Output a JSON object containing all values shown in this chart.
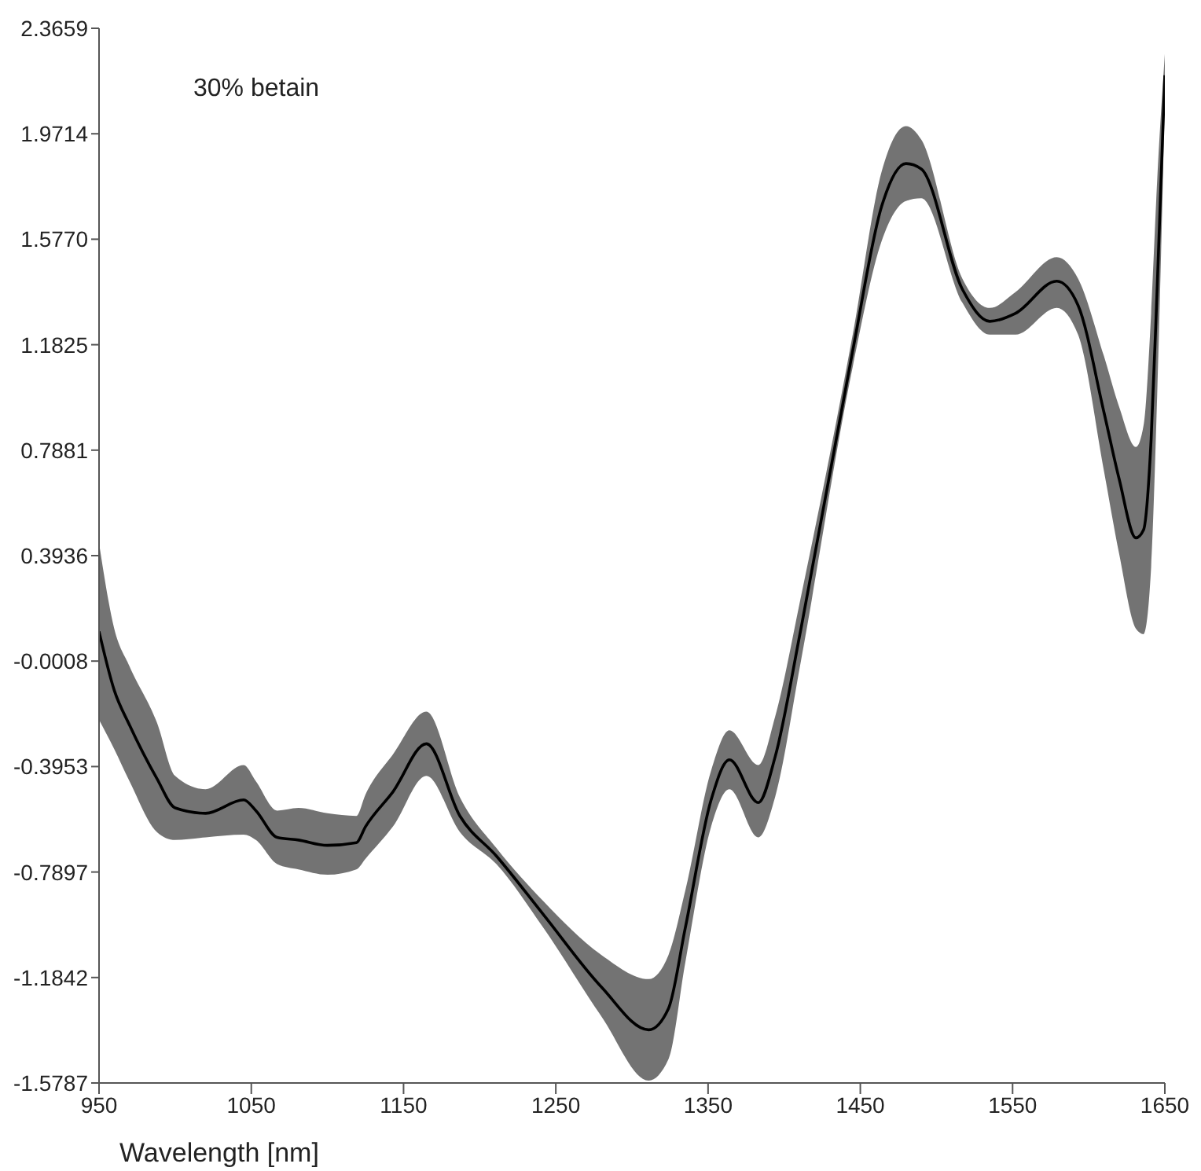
{
  "chart_data": {
    "type": "line",
    "xlabel": "Wavelength [nm]",
    "annotations": [
      "30% betain"
    ],
    "x": [
      950,
      960,
      970,
      988,
      1000,
      1020,
      1045,
      1053,
      1067,
      1081,
      1100,
      1119,
      1125,
      1143,
      1165,
      1187,
      1211,
      1242,
      1280,
      1311,
      1324,
      1335,
      1352,
      1364,
      1383,
      1394,
      1411,
      1445,
      1464,
      1480,
      1490,
      1517,
      1535,
      1552,
      1579,
      1593,
      1610,
      1620,
      1631,
      1636,
      1641,
      1645,
      1650
    ],
    "series": [
      {
        "color": "#000000",
        "values": [
          0.11,
          -0.11,
          -0.24,
          -0.44,
          -0.55,
          -0.57,
          -0.52,
          -0.56,
          -0.66,
          -0.67,
          -0.69,
          -0.68,
          -0.62,
          -0.49,
          -0.31,
          -0.58,
          -0.73,
          -0.95,
          -1.22,
          -1.38,
          -1.3,
          -1.0,
          -0.52,
          -0.37,
          -0.53,
          -0.36,
          0.12,
          1.16,
          1.7,
          1.86,
          1.84,
          1.39,
          1.27,
          1.3,
          1.42,
          1.33,
          0.93,
          0.68,
          0.46,
          0.49,
          0.83,
          1.4,
          2.19
        ],
        "lower": [
          -0.22,
          -0.33,
          -0.45,
          -0.64,
          -0.67,
          -0.66,
          -0.65,
          -0.67,
          -0.76,
          -0.78,
          -0.8,
          -0.78,
          -0.74,
          -0.62,
          -0.43,
          -0.64,
          -0.76,
          -1.0,
          -1.33,
          -1.57,
          -1.49,
          -1.13,
          -0.62,
          -0.48,
          -0.66,
          -0.51,
          0.0,
          1.1,
          1.57,
          1.72,
          1.73,
          1.34,
          1.22,
          1.22,
          1.32,
          1.22,
          0.71,
          0.4,
          0.12,
          0.1,
          0.35,
          1.0,
          2.1
        ],
        "upper": [
          0.44,
          0.12,
          -0.02,
          -0.23,
          -0.43,
          -0.48,
          -0.39,
          -0.45,
          -0.56,
          -0.55,
          -0.57,
          -0.58,
          -0.5,
          -0.35,
          -0.19,
          -0.51,
          -0.7,
          -0.9,
          -1.1,
          -1.19,
          -1.1,
          -0.86,
          -0.41,
          -0.26,
          -0.39,
          -0.21,
          0.24,
          1.22,
          1.83,
          2.0,
          1.95,
          1.43,
          1.32,
          1.38,
          1.51,
          1.43,
          1.14,
          0.95,
          0.8,
          0.88,
          1.3,
          1.8,
          2.27
        ]
      }
    ],
    "xlim": [
      950,
      1650
    ],
    "xticks": [
      950,
      1050,
      1150,
      1250,
      1350,
      1450,
      1550,
      1650
    ],
    "ylim": [
      -1.5787,
      2.3659
    ],
    "yticks": [
      -1.5787,
      -1.1842,
      -0.7897,
      -0.3953,
      -0.0008,
      0.3936,
      0.7881,
      1.1825,
      {
        "value": 1.577,
        "label": "1.5770"
      },
      1.9714,
      2.3659
    ]
  }
}
